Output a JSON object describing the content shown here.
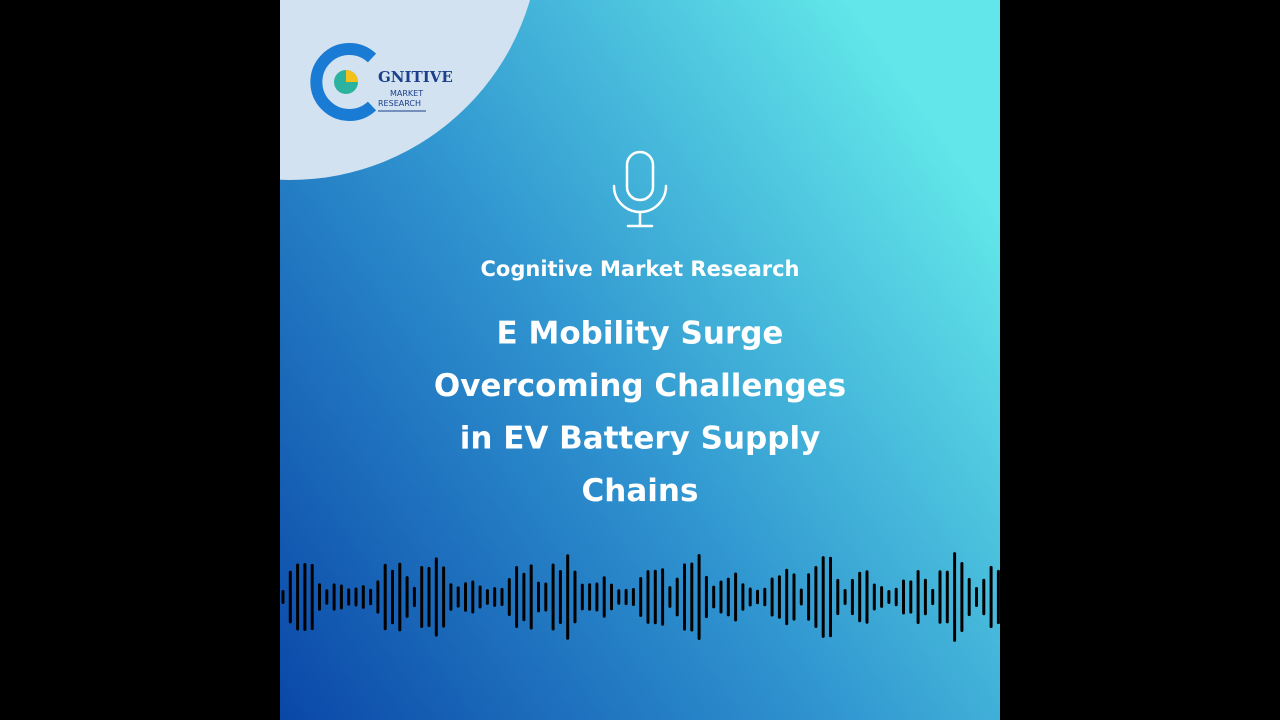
{
  "logo": {
    "brand": "GNITIVE",
    "line2": "MARKET",
    "line3": "RESEARCH"
  },
  "subtitle": "Cognitive Market Research",
  "title": [
    "E Mobility Surge",
    "Overcoming Challenges",
    "in EV Battery Supply",
    "Chains"
  ]
}
